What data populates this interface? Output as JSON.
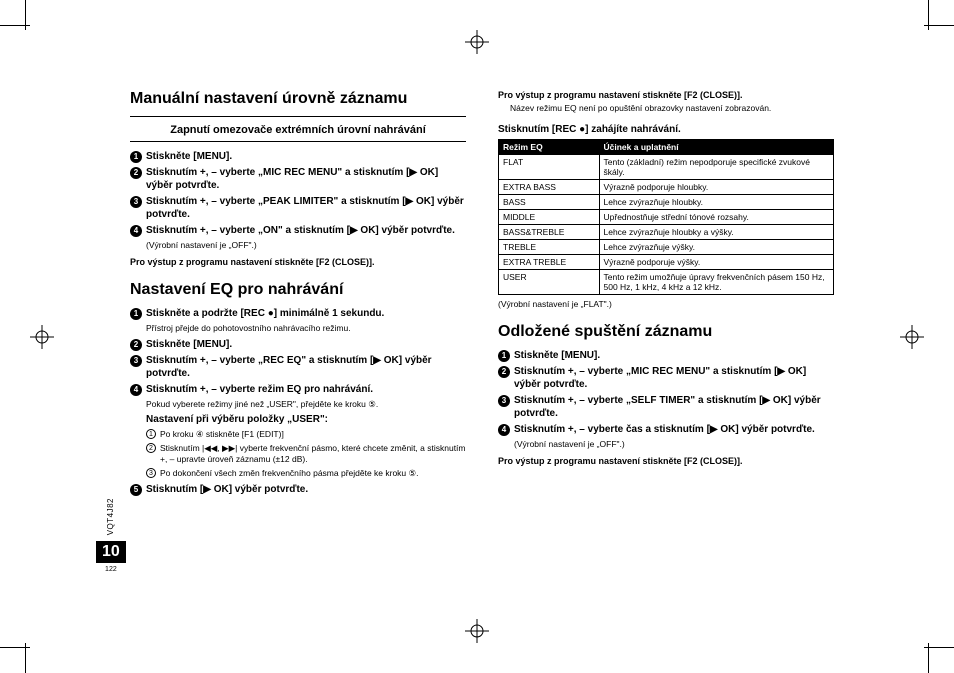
{
  "meta": {
    "doc_code": "VQT4J82",
    "page_big": "10",
    "page_small": "122"
  },
  "left": {
    "h_manual": "Manuální nastavení úrovně záznamu",
    "subhead": "Zapnutí omezovače extrémních úrovní nahrávání",
    "steps_a": [
      "Stiskněte [MENU].",
      "Stisknutím +, – vyberte „MIC REC MENU\" a stisknutím [▶ OK] výběr potvrďte.",
      "Stisknutím +, – vyberte „PEAK LIMITER\" a stisknutím [▶ OK] výběr potvrďte.",
      "Stisknutím +, – vyberte „ON\" a stisknutím [▶ OK] výběr potvrďte."
    ],
    "note_a": "(Výrobní nastavení je „OFF\".)",
    "closing": "Pro výstup z programu nastavení stiskněte [F2 (CLOSE)].",
    "h_eq": "Nastavení EQ pro nahrávání",
    "steps_b": [
      "Stiskněte a podržte [REC ●] minimálně 1 sekundu.",
      "Stiskněte [MENU].",
      "Stisknutím +, – vyberte „REC EQ\" a stisknutím [▶ OK] výběr potvrďte.",
      "Stisknutím +, – vyberte režim EQ pro nahrávání."
    ],
    "note_b1": "Přístroj přejde do pohotovostního nahrávacího režimu.",
    "note_b4": "Pokud vyberete režimy jiné než „USER\", přejděte ke kroku ⑤.",
    "user_head": "Nastavení při výběru položky „USER\":",
    "substeps": [
      "Po kroku ④ stiskněte [F1 (EDIT)]",
      "Stisknutím |◀◀, ▶▶| vyberte frekvenční pásmo, které chcete změnit, a stisknutím +, – upravte úroveň záznamu (±12 dB).",
      "Po dokončení všech změn frekvenčního pásma přejděte ke kroku ⑤."
    ],
    "step5": "Stisknutím [▶ OK] výběr potvrďte."
  },
  "right": {
    "top_close": "Pro výstup z programu nastavení stiskněte [F2 (CLOSE)].",
    "top_note": "Název režimu EQ není po opuštění obrazovky nastavení zobrazován.",
    "rec_start": "Stisknutím [REC ●] zahájíte nahrávání.",
    "table": {
      "headers": [
        "Režim EQ",
        "Účinek a uplatnění"
      ],
      "rows": [
        [
          "FLAT",
          "Tento (základní) režim nepodporuje specifické zvukové škály."
        ],
        [
          "EXTRA BASS",
          "Výrazně podporuje hloubky."
        ],
        [
          "BASS",
          "Lehce zvýrazňuje hloubky."
        ],
        [
          "MIDDLE",
          "Upřednostňuje střední tónové rozsahy."
        ],
        [
          "BASS&TREBLE",
          "Lehce zvýrazňuje hloubky a výšky."
        ],
        [
          "TREBLE",
          "Lehce zvýrazňuje výšky."
        ],
        [
          "EXTRA TREBLE",
          "Výrazně podporuje výšky."
        ],
        [
          "USER",
          "Tento režim umožňuje úpravy frekvenčních pásem 150 Hz, 500 Hz, 1 kHz, 4 kHz a 12 kHz."
        ]
      ]
    },
    "table_note": "(Výrobní nastavení je „FLAT\".)",
    "h_timer": "Odložené spuštění záznamu",
    "steps_c": [
      "Stiskněte [MENU].",
      "Stisknutím +, – vyberte „MIC REC MENU\" a stisknutím [▶ OK] výběr potvrďte.",
      "Stisknutím +, – vyberte „SELF TIMER\" a stisknutím [▶ OK] výběr potvrďte.",
      "Stisknutím +, – vyberte čas a stisknutím [▶ OK] výběr potvrďte."
    ],
    "note_c": "(Výrobní nastavení je „OFF\".)",
    "closing_c": "Pro výstup z programu nastavení stiskněte [F2 (CLOSE)]."
  }
}
